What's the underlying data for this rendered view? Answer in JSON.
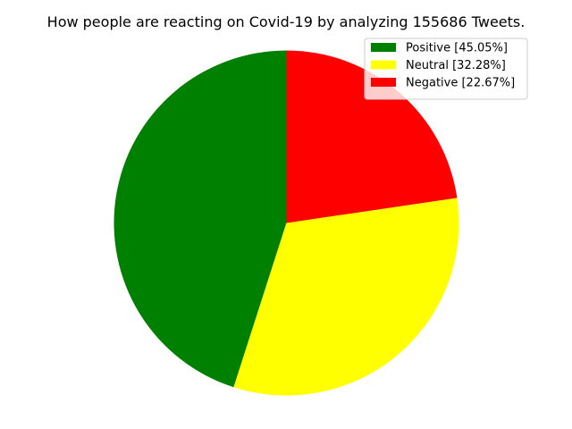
{
  "chart_data": {
    "type": "pie",
    "title": "How people are reacting on Covid-19 by analyzing 155686 Tweets.",
    "categories": [
      "Positive",
      "Neutral",
      "Negative"
    ],
    "values": [
      45.05,
      32.28,
      22.67
    ],
    "legend_labels": [
      "Positive [45.05%]",
      "Neutral [32.28%]",
      "Negative [22.67%]"
    ],
    "colors": [
      "#008000",
      "#ffff00",
      "#ff0000"
    ],
    "start_angle_deg": 90,
    "direction": "counterclockwise",
    "legend_position": "top-right"
  }
}
